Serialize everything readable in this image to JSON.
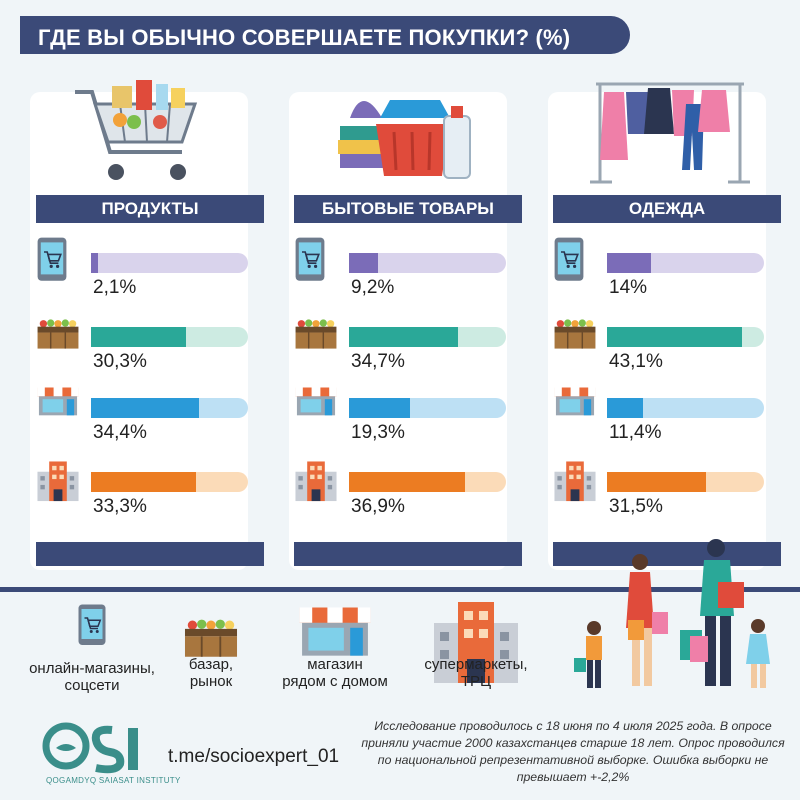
{
  "title": "ГДЕ ВЫ ОБЫЧНО СОВЕРШАЕТЕ ПОКУПКИ? (%)",
  "colors": {
    "navy": "#3b4a78",
    "online": "#7b6cb8",
    "online_track": "#d9d3ec",
    "bazaar": "#2aa898",
    "bazaar_track": "#cdebe2",
    "store": "#2a9ad8",
    "store_track": "#bde0f4",
    "mall": "#ec7c22",
    "mall_track": "#fbdbb8"
  },
  "panels": [
    {
      "label": "ПРОДУКТЫ",
      "illustration": "shopping-cart-illustration"
    },
    {
      "label": "БЫТОВЫЕ ТОВАРЫ",
      "illustration": "household-goods-illustration"
    },
    {
      "label": "ОДЕЖДА",
      "illustration": "clothes-rack-illustration"
    }
  ],
  "chart_data": {
    "type": "bar",
    "title": "ГДЕ ВЫ ОБЫЧНО СОВЕРШАЕТЕ ПОКУПКИ? (%)",
    "categories": [
      "ПРОДУКТЫ",
      "БЫТОВЫЕ ТОВАРЫ",
      "ОДЕЖДА"
    ],
    "series": [
      {
        "name": "онлайн-магазины, соцсети",
        "values": [
          2.1,
          9.2,
          14.0
        ],
        "labels": [
          "2,1%",
          "9,2%",
          "14%"
        ]
      },
      {
        "name": "базар, рынок",
        "values": [
          30.3,
          34.7,
          43.1
        ],
        "labels": [
          "30,3%",
          "34,7%",
          "43,1%"
        ]
      },
      {
        "name": "магазин рядом с домом",
        "values": [
          34.4,
          19.3,
          11.4
        ],
        "labels": [
          "34,4%",
          "19,3%",
          "11,4%"
        ]
      },
      {
        "name": "супермаркеты, ТРЦ",
        "values": [
          33.3,
          36.9,
          31.5
        ],
        "labels": [
          "33,3%",
          "36,9%",
          "31,5%"
        ]
      }
    ],
    "ylim": [
      0,
      50
    ]
  },
  "legend": [
    {
      "line1": "онлайн-магазины,",
      "line2": "соцсети",
      "icon": "tablet-cart-icon"
    },
    {
      "line1": "базар,",
      "line2": "рынок",
      "icon": "market-stall-icon"
    },
    {
      "line1": "магазин",
      "line2": "рядом с домом",
      "icon": "storefront-icon"
    },
    {
      "line1": "супермаркеты,",
      "line2": "ТРЦ",
      "icon": "mall-building-icon"
    }
  ],
  "footer": {
    "url": "t.me/socioexpert_01",
    "note": "Исследование проводилось с 18 июня по 4 июля 2025 года. В опросе приняли участие 2000 казахстанцев старше 18 лет. Опрос проводился по национальной репрезентативной выборке. Ошибка выборки не превышает +-2,2%",
    "logo_text": "QSI",
    "logo_sub": "QOGAMDYQ SAIASAT INSTITUTY"
  }
}
